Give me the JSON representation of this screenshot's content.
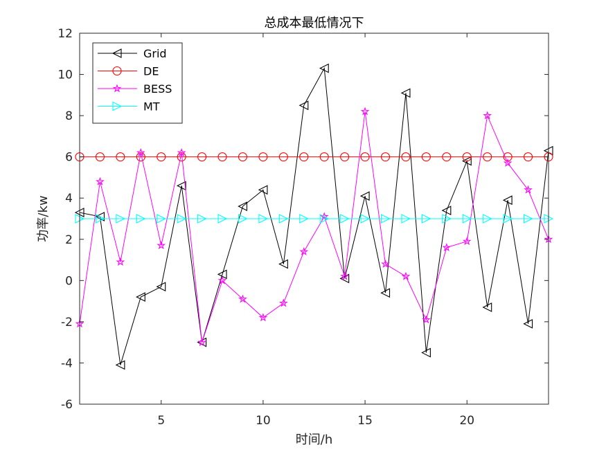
{
  "chart_data": {
    "type": "line",
    "title": "总成本最低情况下",
    "xlabel": "时间/h",
    "ylabel": "功率/kw",
    "xlim": [
      1,
      24
    ],
    "ylim": [
      -6,
      12
    ],
    "xticks": [
      5,
      10,
      15,
      20
    ],
    "yticks": [
      -6,
      -4,
      -2,
      0,
      2,
      4,
      6,
      8,
      10,
      12
    ],
    "grid": false,
    "legend_position": "top-left",
    "x": [
      1,
      2,
      3,
      4,
      5,
      6,
      7,
      8,
      9,
      10,
      11,
      12,
      13,
      14,
      15,
      16,
      17,
      18,
      19,
      20,
      21,
      22,
      23,
      24
    ],
    "series": [
      {
        "name": "Grid",
        "color": "#000000",
        "marker": "triangle-left",
        "values": [
          3.3,
          3.1,
          -4.1,
          -0.8,
          -0.3,
          4.6,
          -3.0,
          0.3,
          3.6,
          4.4,
          0.8,
          8.5,
          10.3,
          0.1,
          4.1,
          -0.6,
          9.1,
          -3.5,
          3.4,
          5.8,
          -1.3,
          3.9,
          -2.1,
          6.3
        ]
      },
      {
        "name": "DE",
        "color": "#ff0000",
        "marker": "circle",
        "values": [
          6,
          6,
          6,
          6,
          6,
          6,
          6,
          6,
          6,
          6,
          6,
          6,
          6,
          6,
          6,
          6,
          6,
          6,
          6,
          6,
          6,
          6,
          6,
          6
        ]
      },
      {
        "name": "BESS",
        "color": "#ff00ff",
        "marker": "star",
        "values": [
          -2.1,
          4.8,
          0.9,
          6.2,
          1.7,
          6.2,
          -3.0,
          0.0,
          -0.9,
          -1.8,
          -1.1,
          1.4,
          3.1,
          0.2,
          8.2,
          0.8,
          0.2,
          -1.9,
          1.6,
          1.9,
          8.0,
          5.7,
          4.4,
          2.0
        ]
      },
      {
        "name": "MT",
        "color": "#00ffff",
        "marker": "triangle-right",
        "values": [
          3,
          3,
          3,
          3,
          3,
          3,
          3,
          3,
          3,
          3,
          3,
          3,
          3,
          3,
          3,
          3,
          3,
          3,
          3,
          3,
          3,
          3,
          3,
          3
        ]
      }
    ]
  }
}
